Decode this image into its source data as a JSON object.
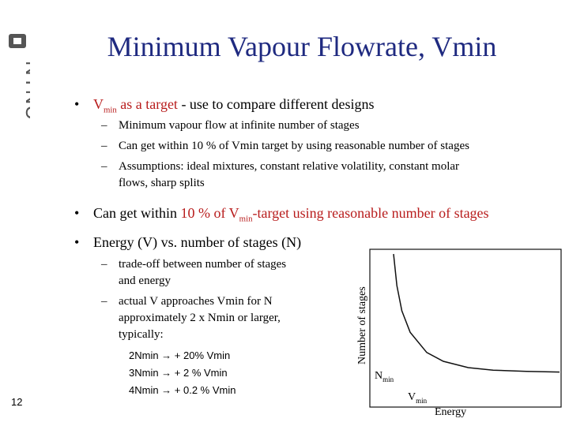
{
  "slide": {
    "title": "Minimum Vapour Flowrate, Vmin",
    "number": "12"
  },
  "logo": {
    "text": "NTNU"
  },
  "bullets": {
    "b1": {
      "main": "V",
      "sub": "min",
      "red_suffix": " as a target",
      "rest": " - use to compare different designs"
    },
    "b1_subs": [
      "Minimum vapour flow at infinite number of stages",
      "Can get within 10 % of Vmin target by using reasonable number of stages",
      "Assumptions: ideal mixtures, constant relative volatility, constant molar",
      "flows, sharp splits"
    ],
    "b2": {
      "pre": "Can get within ",
      "red1": "10 % of V",
      "red_sub": "min",
      "red2": "-target",
      "post": " using reasonable number of stages"
    },
    "b3": {
      "text": "Energy (V) vs. number of stages (N)"
    },
    "b3_subs": [
      "trade-off between number of stages",
      "and energy",
      "actual V approaches Vmin for N",
      "approximately 2 x Nmin or larger,",
      "typically:"
    ],
    "typical": [
      "2Nmin → + 20%  Vmin",
      "3Nmin → + 2 %  Vmin",
      "4Nmin → + 0.2 % Vmin"
    ]
  },
  "chart_data": {
    "type": "line",
    "ylabel": "Number of stages",
    "xlabel": "Energy",
    "annotations": {
      "nmin_main": "N",
      "nmin_sub": "min",
      "vmin_main": "V",
      "vmin_sub": "min"
    },
    "series": [
      {
        "x": [
          0.0,
          0.02,
          0.05,
          0.1,
          0.2,
          0.3,
          0.45,
          0.6,
          0.8,
          1.0
        ],
        "y": [
          1.0,
          0.75,
          0.55,
          0.38,
          0.22,
          0.15,
          0.1,
          0.08,
          0.07,
          0.065
        ]
      }
    ],
    "colors": {
      "line": "#111111",
      "title": "#1f2a80",
      "accent": "#b81c1c"
    }
  }
}
